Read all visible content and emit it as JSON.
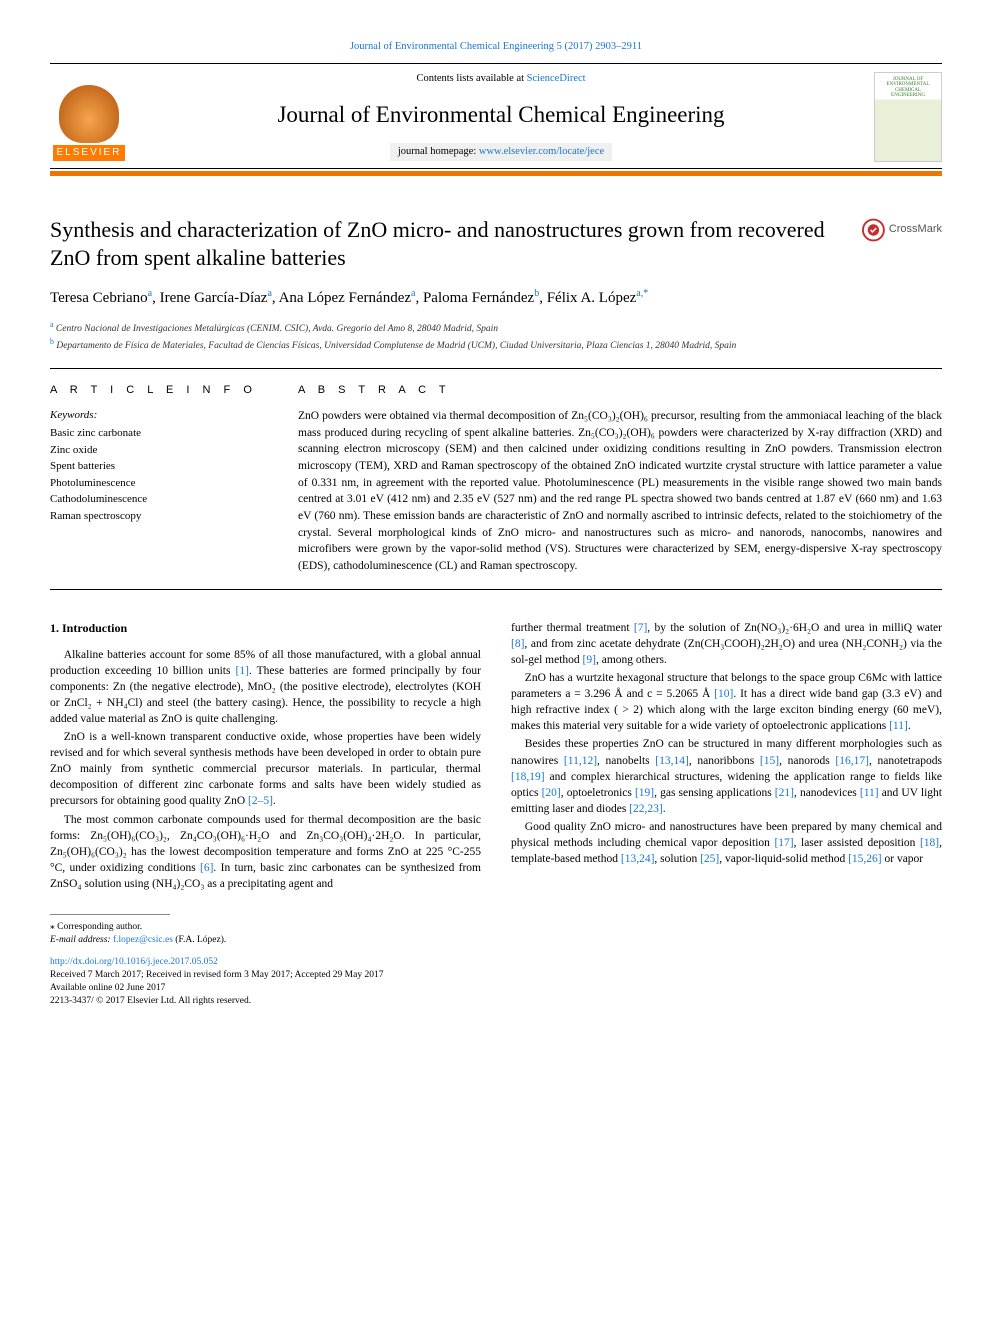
{
  "citation": "Journal of Environmental Chemical Engineering 5 (2017) 2903–2911",
  "header": {
    "contents_prefix": "Contents lists available at ",
    "contents_link": "ScienceDirect",
    "journal_name": "Journal of Environmental Chemical Engineering",
    "homepage_prefix": "journal homepage: ",
    "homepage_link": "www.elsevier.com/locate/jece",
    "publisher_logo_txt": "ELSEVIER",
    "cover_txt": "JOURNAL OF ENVIRONMENTAL CHEMICAL ENGINEERING"
  },
  "crossmark_label": "CrossMark",
  "title": "Synthesis and characterization of ZnO micro- and nanostructures grown from recovered ZnO from spent alkaline batteries",
  "authors_html": "Teresa Cebriano<sup class='sup'><a class='sup-link' href='#'>a</a></sup>, Irene García-Díaz<sup class='sup'><a class='sup-link' href='#'>a</a></sup>, Ana López Fernández<sup class='sup'><a class='sup-link' href='#'>a</a></sup>, Paloma Fernández<sup class='sup'><a class='sup-link' href='#'>b</a></sup>, Félix A. López<sup class='sup'><a class='sup-link' href='#'>a,</a></sup><sup class='sup'><a class='sup-link' href='#'>*</a></sup>",
  "affiliations": [
    {
      "label": "a",
      "text": "Centro Nacional de Investigaciones Metalúrgicas (CENIM. CSIC), Avda. Gregorio del Amo 8, 28040 Madrid, Spain"
    },
    {
      "label": "b",
      "text": "Departamento de Física de Materiales, Facultad de Ciencias Físicas, Universidad Complutense de Madrid (UCM), Ciudad Universitaria, Plaza Ciencias 1, 28040 Madrid, Spain"
    }
  ],
  "labels": {
    "article_info": "A R T I C L E  I N F O",
    "abstract": "A B S T R A C T",
    "keywords_head": "Keywords:",
    "intro_head": "1. Introduction"
  },
  "keywords": [
    "Basic zinc carbonate",
    "Zinc oxide",
    "Spent batteries",
    "Photoluminescence",
    "Cathodoluminescence",
    "Raman spectroscopy"
  ],
  "abstract": "ZnO powders were obtained via thermal decomposition of Zn₅(CO₃)₂(OH)₆ precursor, resulting from the ammoniacal leaching of the black mass produced during recycling of spent alkaline batteries. Zn₅(CO₃)₂(OH)₆ powders were characterized by X-ray diffraction (XRD) and scanning electron microscopy (SEM) and then calcined under oxidizing conditions resulting in ZnO powders. Transmission electron microscopy (TEM), XRD and Raman spectroscopy of the obtained ZnO indicated wurtzite crystal structure with lattice parameter a value of 0.331 nm, in agreement with the reported value. Photoluminescence (PL) measurements in the visible range showed two main bands centred at 3.01 eV (412 nm) and 2.35 eV (527 nm) and the red range PL spectra showed two bands centred at 1.87 eV (660 nm) and 1.63 eV (760 nm). These emission bands are characteristic of ZnO and normally ascribed to intrinsic defects, related to the stoichiometry of the crystal. Several morphological kinds of ZnO micro- and nanostructures such as micro- and nanorods, nanocombs, nanowires and microfibers were grown by the vapor-solid method (VS). Structures were characterized by SEM, energy-dispersive X-ray spectroscopy (EDS), cathodoluminescence (CL) and Raman spectroscopy.",
  "body": {
    "p1": "Alkaline batteries account for some 85% of all those manufactured, with a global annual production exceeding 10 billion units [1]. These batteries are formed principally by four components: Zn (the negative electrode), MnO₂ (the positive electrode), electrolytes (KOH or ZnCl₂ + NH₄Cl) and steel (the battery casing). Hence, the possibility to recycle a high added value material as ZnO is quite challenging.",
    "p2": "ZnO is a well-known transparent conductive oxide, whose properties have been widely revised and for which several synthesis methods have been developed in order to obtain pure ZnO mainly from synthetic commercial precursor materials. In particular, thermal decomposition of different zinc carbonate forms and salts have been widely studied as precursors for obtaining good quality ZnO [2–5].",
    "p3": "The most common carbonate compounds used for thermal decomposition are the basic forms: Zn₅(OH)₆(CO₃)₂, Zn₄CO₃(OH)₆·H₂O and Zn₃CO₃(OH)₄·2H₂O. In particular, Zn₅(OH)₆(CO₃)₂ has the lowest decomposition temperature and forms ZnO at 225 °C-255 °C, under oxidizing conditions [6]. In turn, basic zinc carbonates can be synthesized from ZnSO₄ solution using (NH₄)₂CO₃ as a precipitating agent and",
    "p4": "further thermal treatment [7], by the solution of Zn(NO₃)₂·6H₂O and urea in milliQ water [8], and from zinc acetate dehydrate (Zn(CH₃COOH)₂2H₂O) and urea (NH₂CONH₂) via the sol-gel method [9], among others.",
    "p5": "ZnO has a wurtzite hexagonal structure that belongs to the space group C6Mc with lattice parameters a = 3.296 Å and c = 5.2065 Å [10]. It has a direct wide band gap (3.3 eV) and high refractive index ( > 2) which along with the large exciton binding energy (60 meV), makes this material very suitable for a wide variety of optoelectronic applications [11].",
    "p6": "Besides these properties ZnO can be structured in many different morphologies such as nanowires [11,12], nanobelts [13,14], nanoribbons [15], nanorods [16,17], nanotetrapods [18,19] and complex hierarchical structures, widening the application range to fields like optics [20], optoeletronics [19], gas sensing applications [21], nanodevices [11] and UV light emitting laser and diodes [22,23].",
    "p7": "Good quality ZnO micro- and nanostructures have been prepared by many chemical and physical methods including chemical vapor deposition [17], laser assisted deposition [18], template-based method [13,24], solution [25], vapor-liquid-solid method [15,26] or vapor"
  },
  "footnotes": {
    "corr_label": "⁎ Corresponding author.",
    "email_label": "E-mail address: ",
    "email": "f.lopez@csic.es",
    "email_suffix": " (F.A. López)."
  },
  "doi": {
    "url": "http://dx.doi.org/10.1016/j.jece.2017.05.052",
    "history": "Received 7 March 2017; Received in revised form 3 May 2017; Accepted 29 May 2017",
    "online": "Available online 02 June 2017",
    "copy": "2213-3437/ © 2017 Elsevier Ltd. All rights reserved."
  }
}
